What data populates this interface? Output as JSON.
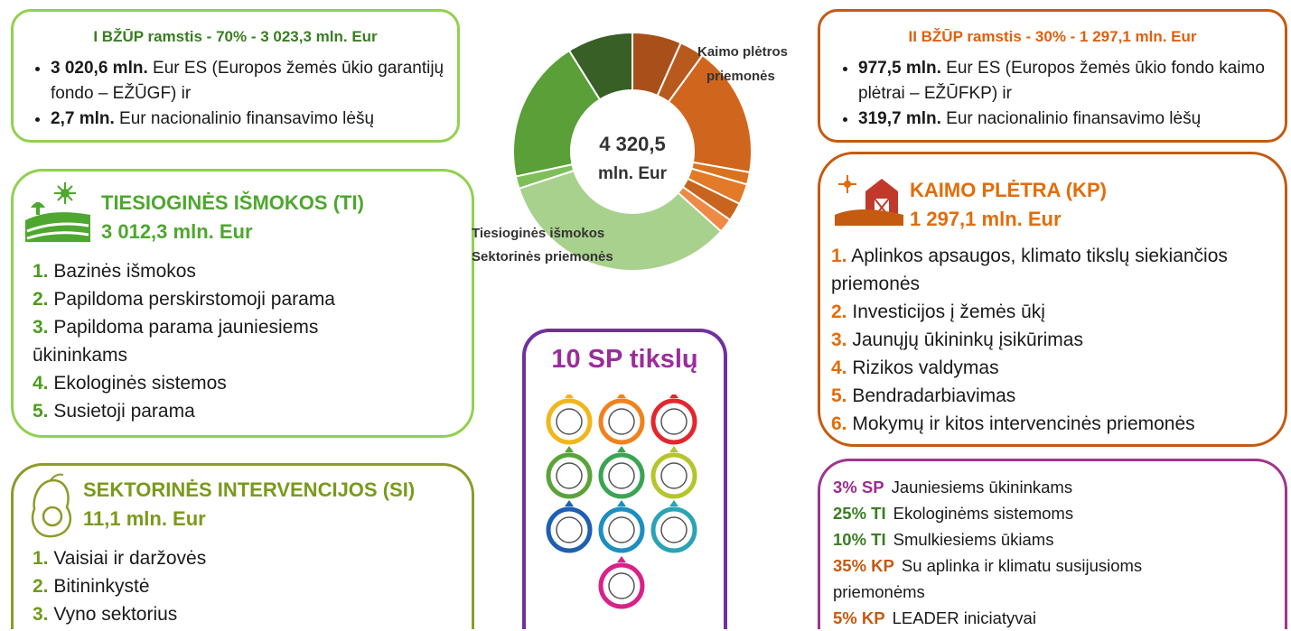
{
  "pillar1": {
    "title": "I BŽŪP ramstis - 70% - 3 023,3 mln. Eur",
    "items": [
      {
        "bold": "3 020,6 mln.",
        "text": "Eur ES (Europos žemės ūkio garantijų fondo – EŽŪGF) ir"
      },
      {
        "bold": "2,7 mln.",
        "text": "Eur nacionalinio finansavimo lėšų"
      }
    ]
  },
  "pillar2": {
    "title": "II BŽŪP ramstis - 30% - 1 297,1 mln. Eur",
    "items": [
      {
        "bold": "977,5 mln.",
        "text": "Eur ES (Europos žemės ūkio fondo kaimo plėtrai – EŽŪFKP) ir"
      },
      {
        "bold": "319,7 mln.",
        "text": "Eur nacionalinio finansavimo lėšų"
      }
    ]
  },
  "direct_payments": {
    "title": "TIESIOGINĖS IŠMOKOS (TI)",
    "amount": "3 012,3 mln. Eur",
    "items": [
      {
        "num": "1.",
        "text": "Bazinės išmokos"
      },
      {
        "num": "2.",
        "text": "Papildoma perskirstomoji parama"
      },
      {
        "num": "3.",
        "text": "Papildoma parama jauniesiems ūkininkams"
      },
      {
        "num": "4.",
        "text": "Ekologinės sistemos"
      },
      {
        "num": "5.",
        "text": "Susietoji parama"
      }
    ]
  },
  "sectoral": {
    "title": "SEKTORINĖS INTERVENCIJOS (SI)",
    "amount": "11,1 mln. Eur",
    "items": [
      {
        "num": "1.",
        "text": "Vaisiai ir daržovės"
      },
      {
        "num": "2.",
        "text": "Bitininkystė"
      },
      {
        "num": "3.",
        "text": "Vyno sektorius"
      }
    ]
  },
  "rural": {
    "title": "KAIMO PLĖTRA (KP)",
    "amount": "1 297,1 mln. Eur",
    "items": [
      {
        "num": "1.",
        "text": "Aplinkos apsaugos, klimato tikslų siekiančios priemonės"
      },
      {
        "num": "2.",
        "text": "Investicijos į žemės ūkį"
      },
      {
        "num": "3.",
        "text": "Jaunųjų ūkininkų įsikūrimas"
      },
      {
        "num": "4.",
        "text": "Rizikos valdymas"
      },
      {
        "num": "5.",
        "text": "Bendradarbiavimas"
      },
      {
        "num": "6.",
        "text": "Mokymų ir kitos intervencinės priemonės"
      }
    ]
  },
  "donut": {
    "total": "4 320,5",
    "unit": "mln. Eur",
    "label_rural_1": "Kaimo plėtros",
    "label_rural_2": "priemonės",
    "label_direct": "Tiesioginės išmokos",
    "label_sectoral": "Sektorinės priemonės"
  },
  "goals": {
    "title": "10 SP tikslų"
  },
  "targets": {
    "items": [
      {
        "tag": "3% SP",
        "text": "Jauniesiems ūkininkams"
      },
      {
        "tag": "25% TI",
        "text": "Ekologinėms sistemoms"
      },
      {
        "tag": "10% TI",
        "text": "Smulkiesiems ūkiams"
      },
      {
        "tag": "35% KP",
        "text": "Su aplinka ir klimatu susijusioms priemonėms"
      },
      {
        "tag": "5% KP",
        "text": "LEADER iniciatyvai"
      }
    ]
  }
}
